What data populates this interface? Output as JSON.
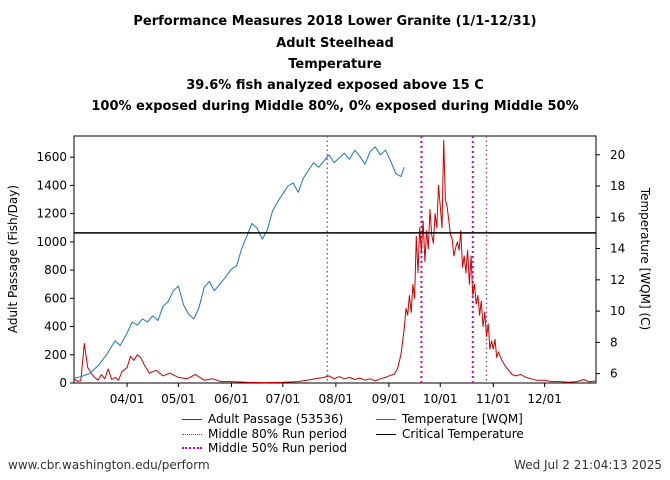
{
  "header": {
    "line1": "Performance Measures 2018 Lower Granite (1/1-12/31)",
    "line2": "Adult Steelhead",
    "line3": "Temperature",
    "line4": "39.6% fish analyzed exposed above 15 C",
    "line5": "100% exposed during Middle 80%, 0% exposed during Middle 50%"
  },
  "footer": {
    "url": "www.cbr.washington.edu/perform",
    "timestamp": "Wed Jul  2 21:04:13 2025"
  },
  "chart_data": {
    "type": "line",
    "ylabel": "Adult Passage (Fish/Day)",
    "y2label": "Temperature [WQM] (C)",
    "xlim": [
      "2018-03-01",
      "2018-12-31"
    ],
    "ylim": [
      0,
      1750
    ],
    "y2lim": [
      5.4,
      21.2
    ],
    "x_ticks": [
      "04/01",
      "05/01",
      "06/01",
      "07/01",
      "08/01",
      "09/01",
      "10/01",
      "11/01",
      "12/01"
    ],
    "y_ticks": [
      0,
      200,
      400,
      600,
      800,
      1000,
      1200,
      1400,
      1600
    ],
    "y2_ticks": [
      6,
      8,
      10,
      12,
      14,
      16,
      18,
      20
    ],
    "critical_temperature": 15,
    "legend": {
      "passage": "Adult Passage (53536)",
      "mid80": "Middle 80% Run period",
      "mid50": "Middle 50% Run period",
      "temperature": "Temperature [WQM]",
      "critical": "Critical Temperature"
    },
    "middle_80_period": [
      "2018-07-27",
      "2018-10-28"
    ],
    "middle_50_period": [
      "2018-09-20",
      "2018-10-20"
    ],
    "colors": {
      "passage": "#cc0000",
      "temperature": "#1f77b4",
      "mid80": "#aa33aa",
      "mid50": "#cc00cc",
      "critical": "#000000"
    },
    "series": [
      {
        "name": "Adult Passage (53536)",
        "axis": "left",
        "points": [
          [
            "2018-03-01",
            30
          ],
          [
            "2018-03-03",
            12
          ],
          [
            "2018-03-05",
            15
          ],
          [
            "2018-03-07",
            280
          ],
          [
            "2018-03-09",
            110
          ],
          [
            "2018-03-11",
            70
          ],
          [
            "2018-03-13",
            40
          ],
          [
            "2018-03-15",
            20
          ],
          [
            "2018-03-17",
            60
          ],
          [
            "2018-03-19",
            30
          ],
          [
            "2018-03-21",
            100
          ],
          [
            "2018-03-23",
            25
          ],
          [
            "2018-03-25",
            40
          ],
          [
            "2018-03-27",
            20
          ],
          [
            "2018-03-29",
            80
          ],
          [
            "2018-04-01",
            110
          ],
          [
            "2018-04-03",
            190
          ],
          [
            "2018-04-05",
            160
          ],
          [
            "2018-04-07",
            200
          ],
          [
            "2018-04-09",
            180
          ],
          [
            "2018-04-11",
            130
          ],
          [
            "2018-04-14",
            70
          ],
          [
            "2018-04-18",
            90
          ],
          [
            "2018-04-22",
            50
          ],
          [
            "2018-04-26",
            70
          ],
          [
            "2018-05-01",
            40
          ],
          [
            "2018-05-06",
            30
          ],
          [
            "2018-05-11",
            60
          ],
          [
            "2018-05-16",
            20
          ],
          [
            "2018-05-21",
            30
          ],
          [
            "2018-05-26",
            10
          ],
          [
            "2018-06-01",
            10
          ],
          [
            "2018-06-10",
            5
          ],
          [
            "2018-06-20",
            3
          ],
          [
            "2018-07-01",
            5
          ],
          [
            "2018-07-10",
            10
          ],
          [
            "2018-07-15",
            20
          ],
          [
            "2018-07-20",
            30
          ],
          [
            "2018-07-25",
            40
          ],
          [
            "2018-07-28",
            50
          ],
          [
            "2018-07-31",
            30
          ],
          [
            "2018-08-03",
            45
          ],
          [
            "2018-08-06",
            30
          ],
          [
            "2018-08-09",
            40
          ],
          [
            "2018-08-12",
            25
          ],
          [
            "2018-08-15",
            35
          ],
          [
            "2018-08-18",
            20
          ],
          [
            "2018-08-21",
            30
          ],
          [
            "2018-08-24",
            15
          ],
          [
            "2018-08-27",
            30
          ],
          [
            "2018-08-30",
            40
          ],
          [
            "2018-09-02",
            55
          ],
          [
            "2018-09-04",
            60
          ],
          [
            "2018-09-06",
            100
          ],
          [
            "2018-09-08",
            200
          ],
          [
            "2018-09-10",
            390
          ],
          [
            "2018-09-11",
            530
          ],
          [
            "2018-09-12",
            480
          ],
          [
            "2018-09-13",
            620
          ],
          [
            "2018-09-14",
            500
          ],
          [
            "2018-09-15",
            700
          ],
          [
            "2018-09-16",
            600
          ],
          [
            "2018-09-17",
            1040
          ],
          [
            "2018-09-18",
            780
          ],
          [
            "2018-09-19",
            1100
          ],
          [
            "2018-09-20",
            920
          ],
          [
            "2018-09-21",
            1150
          ],
          [
            "2018-09-22",
            860
          ],
          [
            "2018-09-23",
            1080
          ],
          [
            "2018-09-24",
            950
          ],
          [
            "2018-09-25",
            1230
          ],
          [
            "2018-09-26",
            1050
          ],
          [
            "2018-09-27",
            990
          ],
          [
            "2018-09-28",
            1200
          ],
          [
            "2018-09-29",
            1100
          ],
          [
            "2018-09-30",
            1400
          ],
          [
            "2018-10-01",
            1250
          ],
          [
            "2018-10-02",
            1100
          ],
          [
            "2018-10-03",
            1720
          ],
          [
            "2018-10-04",
            1300
          ],
          [
            "2018-10-05",
            1250
          ],
          [
            "2018-10-06",
            1150
          ],
          [
            "2018-10-07",
            1050
          ],
          [
            "2018-10-08",
            1020
          ],
          [
            "2018-10-09",
            900
          ],
          [
            "2018-10-10",
            960
          ],
          [
            "2018-10-11",
            1000
          ],
          [
            "2018-10-12",
            940
          ],
          [
            "2018-10-13",
            1080
          ],
          [
            "2018-10-14",
            820
          ],
          [
            "2018-10-15",
            900
          ],
          [
            "2018-10-16",
            780
          ],
          [
            "2018-10-17",
            940
          ],
          [
            "2018-10-18",
            700
          ],
          [
            "2018-10-19",
            900
          ],
          [
            "2018-10-20",
            620
          ],
          [
            "2018-10-21",
            700
          ],
          [
            "2018-10-22",
            560
          ],
          [
            "2018-10-23",
            620
          ],
          [
            "2018-10-24",
            480
          ],
          [
            "2018-10-25",
            580
          ],
          [
            "2018-10-26",
            400
          ],
          [
            "2018-10-27",
            500
          ],
          [
            "2018-10-28",
            330
          ],
          [
            "2018-10-29",
            420
          ],
          [
            "2018-10-30",
            240
          ],
          [
            "2018-10-31",
            300
          ],
          [
            "2018-11-01",
            240
          ],
          [
            "2018-11-02",
            310
          ],
          [
            "2018-11-03",
            180
          ],
          [
            "2018-11-04",
            220
          ],
          [
            "2018-11-06",
            160
          ],
          [
            "2018-11-08",
            120
          ],
          [
            "2018-11-10",
            90
          ],
          [
            "2018-11-12",
            60
          ],
          [
            "2018-11-14",
            50
          ],
          [
            "2018-11-17",
            60
          ],
          [
            "2018-11-20",
            40
          ],
          [
            "2018-11-23",
            30
          ],
          [
            "2018-11-26",
            20
          ],
          [
            "2018-12-01",
            20
          ],
          [
            "2018-12-05",
            10
          ],
          [
            "2018-12-10",
            10
          ],
          [
            "2018-12-15",
            5
          ],
          [
            "2018-12-20",
            10
          ],
          [
            "2018-12-24",
            25
          ],
          [
            "2018-12-27",
            8
          ],
          [
            "2018-12-31",
            15
          ]
        ]
      },
      {
        "name": "Temperature [WQM]",
        "axis": "right",
        "points": [
          [
            "2018-03-01",
            5.7
          ],
          [
            "2018-03-05",
            5.8
          ],
          [
            "2018-03-10",
            6.0
          ],
          [
            "2018-03-15",
            6.5
          ],
          [
            "2018-03-20",
            7.2
          ],
          [
            "2018-03-25",
            8.1
          ],
          [
            "2018-03-28",
            7.8
          ],
          [
            "2018-04-01",
            8.6
          ],
          [
            "2018-04-04",
            9.3
          ],
          [
            "2018-04-07",
            9.1
          ],
          [
            "2018-04-10",
            9.5
          ],
          [
            "2018-04-13",
            9.3
          ],
          [
            "2018-04-16",
            9.7
          ],
          [
            "2018-04-19",
            9.4
          ],
          [
            "2018-04-22",
            10.3
          ],
          [
            "2018-04-25",
            10.6
          ],
          [
            "2018-04-28",
            11.3
          ],
          [
            "2018-05-01",
            11.6
          ],
          [
            "2018-05-04",
            10.4
          ],
          [
            "2018-05-07",
            9.8
          ],
          [
            "2018-05-10",
            9.5
          ],
          [
            "2018-05-13",
            10.2
          ],
          [
            "2018-05-16",
            11.5
          ],
          [
            "2018-05-19",
            11.9
          ],
          [
            "2018-05-22",
            11.3
          ],
          [
            "2018-05-25",
            11.7
          ],
          [
            "2018-05-28",
            12.1
          ],
          [
            "2018-06-01",
            12.7
          ],
          [
            "2018-06-04",
            12.9
          ],
          [
            "2018-06-07",
            14.0
          ],
          [
            "2018-06-10",
            14.8
          ],
          [
            "2018-06-13",
            15.6
          ],
          [
            "2018-06-16",
            15.3
          ],
          [
            "2018-06-19",
            14.6
          ],
          [
            "2018-06-22",
            15.2
          ],
          [
            "2018-06-25",
            16.4
          ],
          [
            "2018-06-28",
            17.0
          ],
          [
            "2018-07-01",
            17.5
          ],
          [
            "2018-07-04",
            18.0
          ],
          [
            "2018-07-07",
            18.2
          ],
          [
            "2018-07-10",
            17.6
          ],
          [
            "2018-07-13",
            18.5
          ],
          [
            "2018-07-16",
            19.0
          ],
          [
            "2018-07-19",
            19.5
          ],
          [
            "2018-07-22",
            19.2
          ],
          [
            "2018-07-25",
            19.6
          ],
          [
            "2018-07-28",
            20.0
          ],
          [
            "2018-07-31",
            19.5
          ],
          [
            "2018-08-03",
            19.8
          ],
          [
            "2018-08-06",
            20.1
          ],
          [
            "2018-08-09",
            19.7
          ],
          [
            "2018-08-12",
            20.3
          ],
          [
            "2018-08-15",
            19.9
          ],
          [
            "2018-08-18",
            19.4
          ],
          [
            "2018-08-21",
            20.2
          ],
          [
            "2018-08-24",
            20.5
          ],
          [
            "2018-08-27",
            20.0
          ],
          [
            "2018-08-30",
            20.3
          ],
          [
            "2018-09-02",
            19.6
          ],
          [
            "2018-09-05",
            18.8
          ],
          [
            "2018-09-08",
            18.6
          ],
          [
            "2018-09-10",
            19.2
          ]
        ]
      }
    ]
  }
}
